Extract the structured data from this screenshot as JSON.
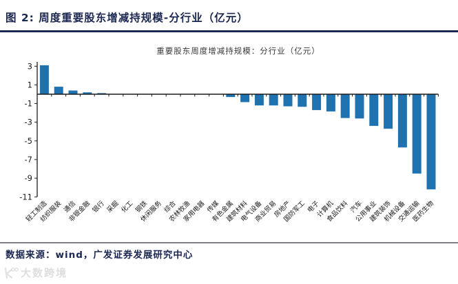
{
  "header": {
    "title": "图 2: 周度重要股东增减持规模-分行业（亿元）"
  },
  "chart_data": {
    "type": "bar",
    "title": "重要股东周度增减持规模：分行业（亿元）",
    "categories": [
      "轻工制造",
      "纺织服装",
      "通信",
      "非银金融",
      "银行",
      "采掘",
      "化工",
      "钢铁",
      "休闲服务",
      "综合",
      "农林牧渔",
      "家用电器",
      "传媒",
      "有色金属",
      "建筑材料",
      "电气设备",
      "商业贸易",
      "房地产",
      "国防军工",
      "电子",
      "计算机",
      "食品饮料",
      "汽车",
      "公用事业",
      "建筑装饰",
      "机械设备",
      "交通运输",
      "医药生物"
    ],
    "values": [
      3.1,
      0.8,
      0.4,
      0.2,
      0.12,
      0.04,
      0.02,
      0.01,
      0.01,
      0.0,
      -0.01,
      -0.02,
      -0.04,
      -0.3,
      -0.85,
      -1.2,
      -1.2,
      -1.3,
      -1.35,
      -1.7,
      -1.85,
      -2.55,
      -2.6,
      -3.4,
      -3.7,
      -5.7,
      -8.5,
      -10.2
    ],
    "xlabel": "",
    "ylabel": "",
    "ylim": [
      -11,
      3.46
    ],
    "yticks": [
      3,
      1,
      -1,
      -3,
      -5,
      -7,
      -9,
      -11
    ],
    "grid": false,
    "legend": null,
    "bar_color": "#1f72b0",
    "axis_color": "#1a1a1a"
  },
  "footer": {
    "source": "数据来源：wind，广发证券发展研究中心"
  },
  "watermark": {
    "text": "大数跨境"
  }
}
